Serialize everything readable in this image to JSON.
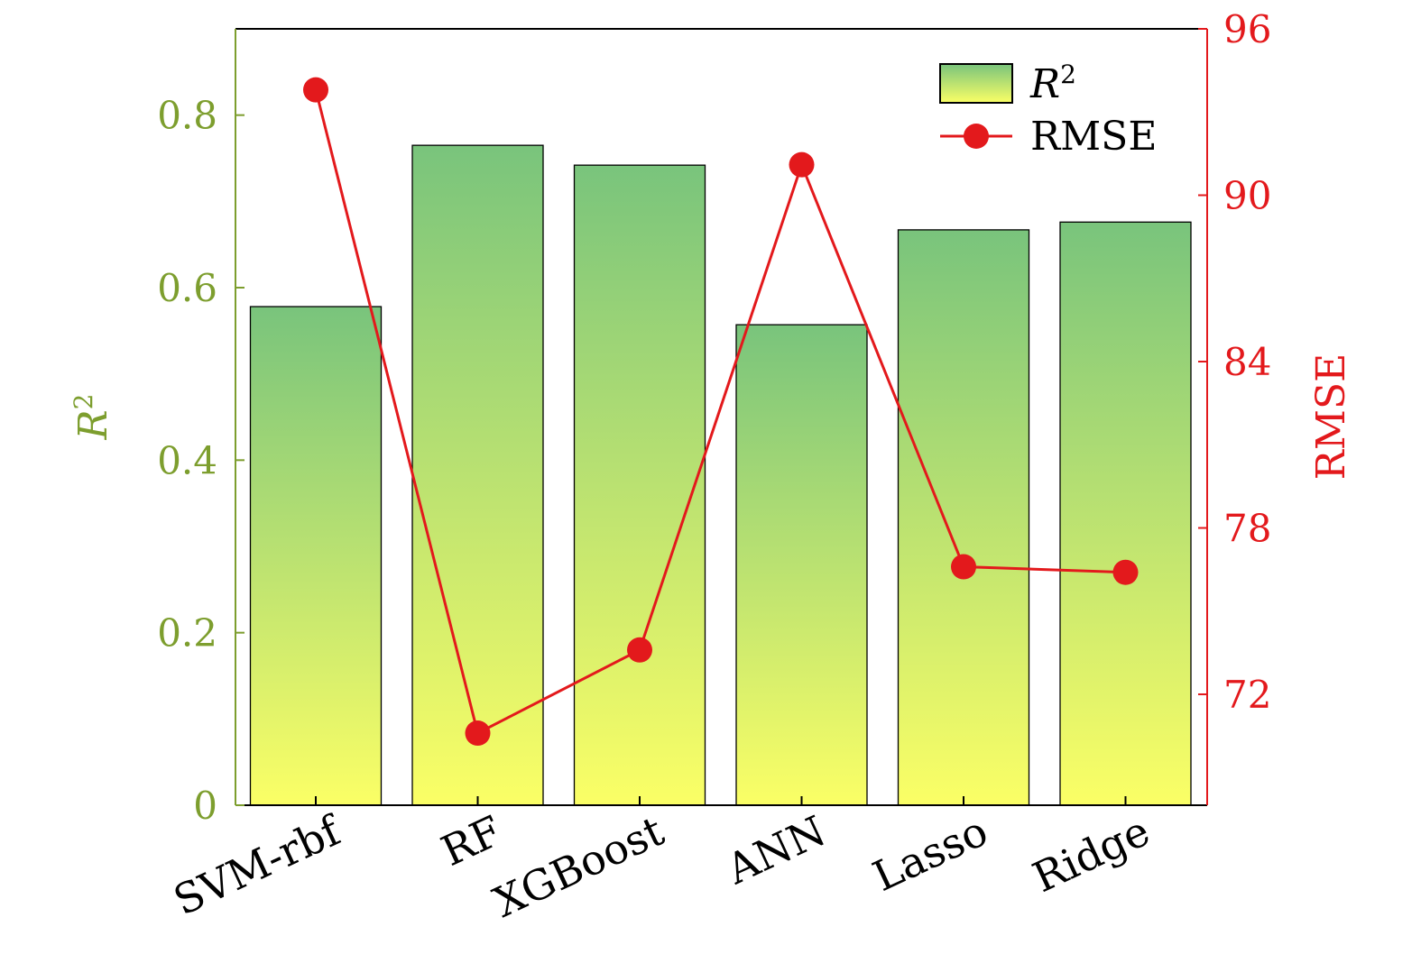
{
  "chart_data": {
    "type": "bar",
    "categories": [
      "SVM-rbf",
      "RF",
      "XGBoost",
      "ANN",
      "Lasso",
      "Ridge"
    ],
    "series": [
      {
        "name": "R2",
        "legend_label": "R",
        "legend_sup": "2",
        "axis": "left",
        "type": "bar",
        "values": [
          0.578,
          0.765,
          0.742,
          0.557,
          0.667,
          0.676
        ]
      },
      {
        "name": "RMSE",
        "legend_label": "RMSE",
        "axis": "right",
        "type": "line",
        "values": [
          93.8,
          70.6,
          73.6,
          91.1,
          76.6,
          76.4
        ]
      }
    ],
    "y_left": {
      "label": "R",
      "label_sup": "2",
      "ylim": [
        0,
        0.9
      ],
      "ticks": [
        0,
        0.2,
        0.4,
        0.6,
        0.8
      ],
      "tick_labels": [
        "0",
        "0.2",
        "0.4",
        "0.6",
        "0.8"
      ]
    },
    "y_right": {
      "label": "RMSE",
      "ylim": [
        68,
        96
      ],
      "ticks": [
        72,
        78,
        84,
        90,
        96
      ],
      "tick_labels": [
        "72",
        "78",
        "84",
        "90",
        "96"
      ]
    },
    "legend_placement": "top-right",
    "grid": false,
    "colors": {
      "left_axis": "#7d9e2e",
      "right_axis": "#e3191c",
      "bar_top": "#79c47c",
      "bar_bottom": "#fbff66",
      "line": "#e3191c"
    }
  }
}
